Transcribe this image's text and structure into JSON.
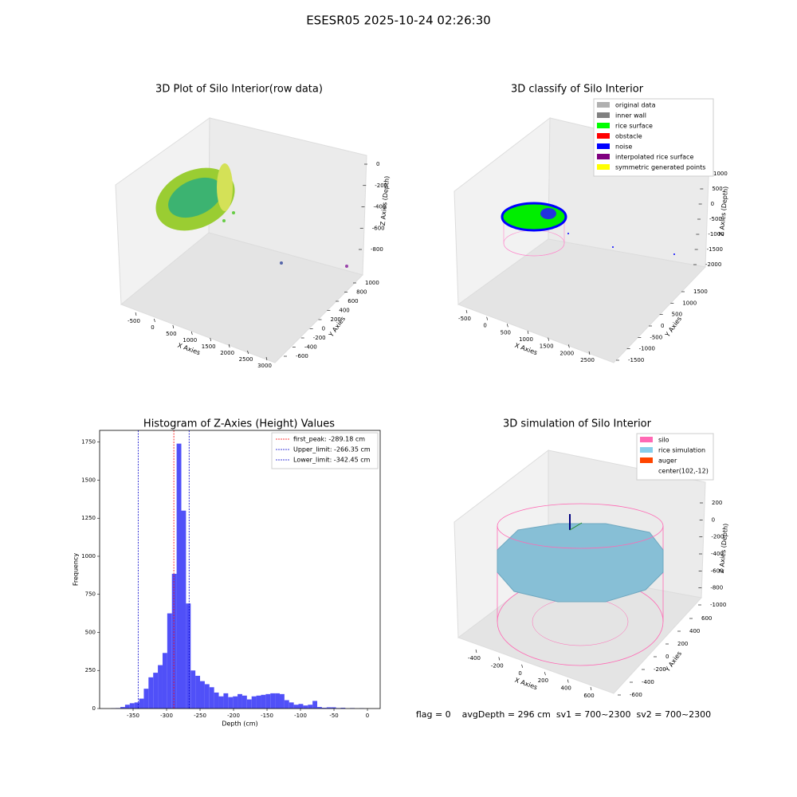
{
  "title": "ESESR05 2025-10-24 02:26:30",
  "chart_data": [
    {
      "type": "scatter3d",
      "title": "3D Plot of Silo Interior(row data)",
      "x_label": "X Axies",
      "y_label": "Y Axies",
      "z_label": "Z Axies (Depth)",
      "xticks": [
        -500,
        0,
        500,
        1000,
        1500,
        2000,
        2500,
        3000
      ],
      "yticks": [
        1000,
        800,
        600,
        400,
        200,
        0,
        -200,
        -400,
        -600
      ],
      "zticks": [
        0,
        -200,
        -400,
        -600,
        -800
      ]
    },
    {
      "type": "scatter3d",
      "title": "3D classify of Silo Interior",
      "x_label": "X Axies",
      "y_label": "Y Axies",
      "z_label": "Z Axies (Depth)",
      "xticks": [
        -500,
        0,
        500,
        1000,
        1500,
        2000,
        2500
      ],
      "yticks": [
        1500,
        1000,
        500,
        0,
        -500,
        -1000,
        -1500
      ],
      "zticks": [
        1000,
        500,
        0,
        -500,
        -1000,
        -1500,
        -2000
      ],
      "legend": [
        {
          "name": "original data",
          "color": "#b0b0b0"
        },
        {
          "name": "inner wall",
          "color": "#808080"
        },
        {
          "name": "rice surface",
          "color": "#00ff00"
        },
        {
          "name": "obstacle",
          "color": "#ff0000"
        },
        {
          "name": "noise",
          "color": "#0000ff"
        },
        {
          "name": "interpolated rice surface",
          "color": "#800080"
        },
        {
          "name": "symmetric generated points",
          "color": "#ffff00"
        }
      ]
    },
    {
      "type": "histogram",
      "title": "Histogram of Z-Axies (Height) Values",
      "x_label": "Depth (cm)",
      "y_label": "Frequency",
      "color": "#5050f8",
      "bins": [
        -383,
        -376,
        -369,
        -362,
        -355,
        -348,
        -341,
        -334,
        -327,
        -320,
        -313,
        -306,
        -299,
        -292,
        -285,
        -278,
        -271,
        -264,
        -257,
        -250,
        -243,
        -236,
        -229,
        -222,
        -215,
        -208,
        -201,
        -194,
        -187,
        -180,
        -173,
        -166,
        -159,
        -152,
        -145,
        -138,
        -131,
        -124,
        -117,
        -110,
        -103,
        -96,
        -89,
        -82,
        -75,
        -68,
        -61,
        -54,
        -47,
        -40,
        -33,
        -26,
        -19,
        -12,
        -5,
        2,
        9
      ],
      "counts": [
        2,
        3,
        10,
        25,
        35,
        40,
        65,
        130,
        205,
        235,
        285,
        365,
        625,
        885,
        1740,
        1300,
        690,
        250,
        215,
        180,
        160,
        140,
        105,
        80,
        100,
        75,
        80,
        95,
        85,
        60,
        80,
        85,
        90,
        95,
        100,
        100,
        95,
        55,
        40,
        25,
        30,
        20,
        25,
        50,
        10,
        5,
        8,
        8,
        3,
        5,
        0,
        3,
        0,
        2,
        0,
        0
      ],
      "xlim": [
        -400,
        19
      ],
      "ylim": [
        0,
        1827
      ],
      "xticks": [
        -350,
        -300,
        -250,
        -200,
        -150,
        -100,
        -50,
        0
      ],
      "yticks": [
        0,
        250,
        500,
        750,
        1000,
        1250,
        1500,
        1750
      ],
      "vlines": [
        {
          "label": "first_peak: -289.18 cm",
          "value": -289.18,
          "color": "#ff0000"
        },
        {
          "label": "Upper_limit: -266.35 cm",
          "value": -266.35,
          "color": "#0000cc"
        },
        {
          "label": "Lower_limit: -342.45 cm",
          "value": -342.45,
          "color": "#0000cc"
        }
      ]
    },
    {
      "type": "surface3d",
      "title": "3D simulation of Silo Interior",
      "x_label": "X Axies",
      "y_label": "Y Axies",
      "z_label": "Z Axies (Depth)",
      "xticks": [
        -400,
        -200,
        0,
        200,
        400,
        600
      ],
      "yticks": [
        600,
        400,
        200,
        0,
        -200,
        -400,
        -600
      ],
      "zticks": [
        200,
        0,
        -200,
        -400,
        -600,
        -800,
        -1000
      ],
      "legend": [
        {
          "name": "silo",
          "color": "#ff69b4"
        },
        {
          "name": "rice simulation",
          "color": "#87ceeb"
        },
        {
          "name": "auger",
          "color": "#ff4500"
        },
        {
          "name": "center(102,-12)",
          "color": "#ffffff"
        }
      ],
      "annotation": "flag = 0    avgDepth = 296 cm  sv1 = 700~2300  sv2 = 700~2300"
    }
  ]
}
